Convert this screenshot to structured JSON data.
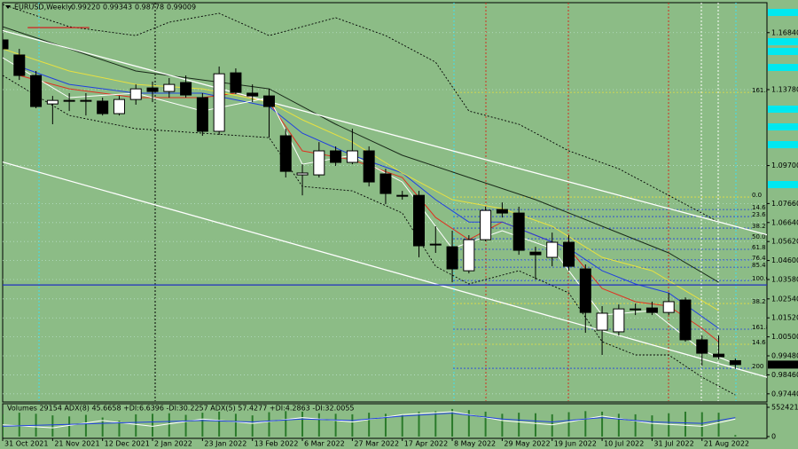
{
  "chart_data": {
    "type": "candlestick",
    "title": "EURUSD,Weekly",
    "last_bar_labels": [
      "0.99220",
      "0.99343",
      "0.98778",
      "0.99009"
    ],
    "categories": [
      "31 Oct 2021",
      null,
      null,
      "21 Nov 2021",
      null,
      null,
      "12 Dec 2021",
      null,
      null,
      "2 Jan 2022",
      null,
      null,
      "23 Jan 2022",
      null,
      null,
      "13 Feb 2022",
      null,
      null,
      "6 Mar 2022",
      null,
      null,
      "27 Mar 2022",
      null,
      null,
      "17 Apr 2022",
      null,
      null,
      "8 May 2022",
      null,
      null,
      "29 May 2022",
      null,
      null,
      "19 Jun 2022",
      null,
      null,
      "10 Jul 2022",
      null,
      null,
      "31 Jul 2022",
      null,
      null,
      "21 Aug 2022",
      null,
      null
    ],
    "open": [
      1.1645,
      1.1564,
      1.1454,
      1.1301,
      1.1316,
      1.132,
      1.1316,
      1.1249,
      1.1325,
      1.1387,
      1.1368,
      1.1416,
      1.1335,
      1.1154,
      1.1468,
      1.1359,
      1.1344,
      1.113,
      1.092,
      1.092,
      1.1049,
      1.0987,
      1.1049,
      1.0925,
      1.081,
      1.081,
      1.0548,
      1.0534,
      1.0405,
      1.0572,
      1.0734,
      1.0715,
      1.0505,
      1.0477,
      1.0558,
      1.0415,
      1.0086,
      1.0077,
      1.02,
      1.0205,
      1.0181,
      1.0248,
      1.0034,
      0.9957,
      0.9922
    ],
    "high": [
      1.1668,
      1.1597,
      1.1478,
      1.1344,
      1.1359,
      1.1359,
      1.1335,
      1.1344,
      1.1406,
      1.1421,
      1.144,
      1.1454,
      1.1359,
      1.1502,
      1.1492,
      1.1406,
      1.1382,
      1.1168,
      1.0977,
      1.1096,
      1.1073,
      1.1168,
      1.1073,
      1.0953,
      1.0834,
      1.0834,
      1.0644,
      1.062,
      1.0596,
      1.0749,
      1.0772,
      1.0749,
      1.0534,
      1.061,
      1.0596,
      1.0439,
      1.0215,
      1.0224,
      1.0229,
      1.0239,
      1.0286,
      1.0262,
      1.0057,
      1.0057,
      0.99343
    ],
    "low": [
      1.1573,
      1.143,
      1.1278,
      1.1192,
      1.1263,
      1.1239,
      1.1239,
      1.1239,
      1.1297,
      1.1311,
      1.1335,
      1.1335,
      1.113,
      1.1135,
      1.1354,
      1.1311,
      1.112,
      1.0906,
      1.081,
      1.0906,
      1.0968,
      1.0977,
      1.0858,
      1.0763,
      1.0787,
      1.0477,
      1.0501,
      1.0343,
      1.0391,
      1.0563,
      1.0691,
      1.0491,
      1.0358,
      1.0429,
      1.0405,
      1.0072,
      0.9953,
      1.0057,
      1.0167,
      1.0167,
      1.0167,
      1.0024,
      0.9895,
      0.9929,
      0.98778
    ],
    "close": [
      1.1597,
      1.1454,
      1.1287,
      1.132,
      1.132,
      1.132,
      1.1249,
      1.1325,
      1.1382,
      1.1368,
      1.1406,
      1.1349,
      1.1154,
      1.1463,
      1.1363,
      1.1344,
      1.1287,
      1.0939,
      1.093,
      1.1049,
      1.0987,
      1.1049,
      1.0882,
      1.082,
      1.0806,
      1.0539,
      1.0548,
      1.0415,
      1.0572,
      1.0729,
      1.0715,
      1.0515,
      1.0491,
      1.0558,
      1.0429,
      1.0181,
      1.0177,
      1.02,
      1.02,
      1.0181,
      1.0239,
      1.0034,
      0.9962,
      0.9943,
      0.99009
    ],
    "bull_color": "#ffffff",
    "bear_color": "#000000",
    "ylim": [
      0.9705,
      1.1845
    ],
    "yticks": [
      {
        "value": 1.1684,
        "label": "1.16840"
      },
      {
        "value": 1.1378,
        "label": "1.13780"
      },
      {
        "value": 1.097,
        "label": "1.09700"
      },
      {
        "value": 1.0766,
        "label": "1.07660"
      },
      {
        "value": 1.0664,
        "label": "1.06640"
      },
      {
        "value": 1.0562,
        "label": "1.05620"
      },
      {
        "value": 1.046,
        "label": "1.04600"
      },
      {
        "value": 1.0358,
        "label": "1.03580"
      },
      {
        "value": 1.0254,
        "label": "1.02540"
      },
      {
        "value": 1.0152,
        "label": "1.01520"
      },
      {
        "value": 1.005,
        "label": "1.00500"
      },
      {
        "value": 0.9948,
        "label": "0.99480"
      },
      {
        "value": 0.9846,
        "label": "0.98460"
      },
      {
        "value": 0.9744,
        "label": "0.97440"
      }
    ],
    "grid": true,
    "overlays": [
      {
        "color": "#e03020",
        "style": "solid",
        "x": [
          1,
          4,
          8,
          12,
          14,
          16,
          18,
          21,
          24,
          26,
          28,
          30,
          32,
          34,
          36,
          38,
          40,
          42,
          43
        ],
        "values": [
          1.1454,
          1.1382,
          1.1335,
          1.1335,
          1.1359,
          1.1311,
          1.1049,
          1.1001,
          1.0906,
          1.0691,
          1.0572,
          1.0667,
          1.0596,
          1.0525,
          1.031,
          1.0239,
          1.0215,
          1.0096,
          1.0024
        ]
      },
      {
        "color": "#2040e0",
        "style": "solid",
        "x": [
          1,
          4,
          8,
          12,
          16,
          18,
          21,
          24,
          26,
          28,
          30,
          32,
          34,
          36,
          38,
          40,
          43
        ],
        "values": [
          1.1502,
          1.1406,
          1.1359,
          1.1359,
          1.1287,
          1.1144,
          1.1025,
          1.093,
          1.0787,
          1.0667,
          1.0667,
          1.0596,
          1.0525,
          1.0405,
          1.0334,
          1.0286,
          1.0096
        ]
      },
      {
        "color": "#e8e040",
        "style": "solid",
        "x": [
          0,
          4,
          8,
          12,
          16,
          18,
          21,
          24,
          27,
          30,
          33,
          36,
          39,
          43
        ],
        "values": [
          1.1597,
          1.1478,
          1.1406,
          1.1382,
          1.1311,
          1.1216,
          1.1096,
          1.093,
          1.0787,
          1.0739,
          1.0644,
          1.0477,
          1.0405,
          1.0191
        ]
      },
      {
        "color": "#1a2a1a",
        "style": "solid",
        "x": [
          0,
          4,
          8,
          12,
          16,
          20,
          24,
          28,
          32,
          36,
          40,
          43
        ],
        "values": [
          1.1716,
          1.1597,
          1.1478,
          1.143,
          1.1382,
          1.1192,
          1.1025,
          1.0906,
          1.0787,
          1.0644,
          1.0501,
          1.0343
        ]
      },
      {
        "color": "#ffffff",
        "style": "solid",
        "x": [
          0,
          4,
          8,
          12,
          16,
          18,
          21,
          24,
          27,
          30,
          33,
          36,
          39,
          42,
          44
        ],
        "values": [
          1.1549,
          1.1335,
          1.1359,
          1.1263,
          1.1335,
          1.0977,
          1.1025,
          1.0882,
          1.0525,
          1.062,
          1.0525,
          1.0167,
          1.0191,
          0.9977,
          0.9905
        ]
      },
      {
        "color": "#000000",
        "style": "dotted",
        "x": [
          0,
          4,
          8,
          10,
          13,
          16,
          20,
          23,
          26,
          28,
          31,
          34,
          37,
          40,
          43
        ],
        "values": [
          1.1835,
          1.1716,
          1.1668,
          1.174,
          1.1788,
          1.1668,
          1.1764,
          1.1668,
          1.1525,
          1.1263,
          1.1192,
          1.1049,
          1.0953,
          1.081,
          1.0667
        ]
      },
      {
        "color": "#000000",
        "style": "dotted",
        "x": [
          0,
          4,
          8,
          12,
          16,
          18,
          21,
          24,
          26,
          28,
          31,
          34,
          36,
          38,
          40,
          42,
          44
        ],
        "values": [
          1.1454,
          1.1239,
          1.1168,
          1.1144,
          1.112,
          1.0858,
          1.0834,
          1.0715,
          1.0429,
          1.0334,
          1.0405,
          1.0286,
          1.0024,
          0.9953,
          0.9953,
          0.9833,
          0.9738
        ]
      }
    ],
    "trendlines": [
      {
        "color": "#ffffff",
        "x": [
          0,
          46
        ],
        "values": [
          1.1695,
          1.0596
        ]
      },
      {
        "color": "#ffffff",
        "x": [
          0,
          46
        ],
        "values": [
          1.0989,
          0.9831
        ]
      },
      {
        "color": "#d02020",
        "x": [
          1.5,
          5.2
        ],
        "values": [
          1.1711,
          1.1711
        ]
      },
      {
        "color": "#2030c0",
        "x": [
          0,
          46
        ],
        "values": [
          1.0329,
          1.0329
        ]
      }
    ],
    "levels": [
      {
        "label": "161.8",
        "value": 1.1363,
        "color": "#e8e040"
      },
      {
        "label": "0.0",
        "value": 1.0801,
        "color": "#e8e040"
      },
      {
        "label": "14.6",
        "value": 1.0734,
        "color": "#2040e0"
      },
      {
        "label": "23.6",
        "value": 1.0696,
        "color": "#2040e0"
      },
      {
        "label": "38.2",
        "value": 1.0634,
        "color": "#2040e0"
      },
      {
        "label": "50.0",
        "value": 1.0577,
        "color": "#2040e0"
      },
      {
        "label": "61.8",
        "value": 1.052,
        "color": "#2040e0"
      },
      {
        "label": "76.4",
        "value": 1.0463,
        "color": "#2040e0"
      },
      {
        "label": "85.4",
        "value": 1.0424,
        "color": "#2040e0"
      },
      {
        "label": "100.0",
        "value": 1.0353,
        "color": "#2040e0"
      },
      {
        "label": "38.2",
        "value": 1.0229,
        "color": "#e8e040"
      },
      {
        "label": "161.8",
        "value": 1.0091,
        "color": "#2040e0"
      },
      {
        "label": "14.6",
        "value": 1.001,
        "color": "#e8e040"
      },
      {
        "label": "200",
        "value": 0.9881,
        "color": "#2040e0"
      }
    ],
    "volume_label": "Volumes 29154  ADX(8) 45.6658 +DI:6.6396 -DI:30.2257  ADX(5) 57.4277 +DI:4.2863 -DI:32.0055",
    "volumes": [
      420000,
      450000,
      430000,
      400000,
      380000,
      410000,
      360000,
      300000,
      420000,
      430000,
      440000,
      410000,
      450000,
      470000,
      430000,
      400000,
      460000,
      480000,
      470000,
      440000,
      430000,
      420000,
      450000,
      430000,
      410000,
      470000,
      480000,
      520000,
      500000,
      470000,
      430000,
      450000,
      440000,
      420000,
      460000,
      480000,
      470000,
      430000,
      420000,
      400000,
      440000,
      470000,
      460000,
      450000,
      29154
    ],
    "volume_color": "#2a7a2a",
    "volume_ylim": [
      0,
      552421
    ],
    "volume_ticks": [
      552421,
      0
    ],
    "adx_ylim": [
      0,
      100
    ],
    "adx_series": [
      {
        "color": "#ffffff",
        "x": [
          0,
          3,
          6,
          9,
          12,
          15,
          18,
          21,
          24,
          27,
          30,
          33,
          36,
          39,
          42,
          44
        ],
        "values": [
          40,
          30,
          55,
          35,
          60,
          45,
          65,
          50,
          75,
          85,
          55,
          40,
          70,
          45,
          35,
          60
        ]
      },
      {
        "color": "#2040e0",
        "x": [
          0,
          3,
          6,
          9,
          12,
          15,
          18,
          21,
          24,
          27,
          30,
          33,
          36,
          39,
          42,
          44
        ],
        "values": [
          35,
          40,
          45,
          50,
          55,
          50,
          60,
          55,
          70,
          80,
          60,
          50,
          65,
          50,
          45,
          65
        ]
      }
    ]
  }
}
